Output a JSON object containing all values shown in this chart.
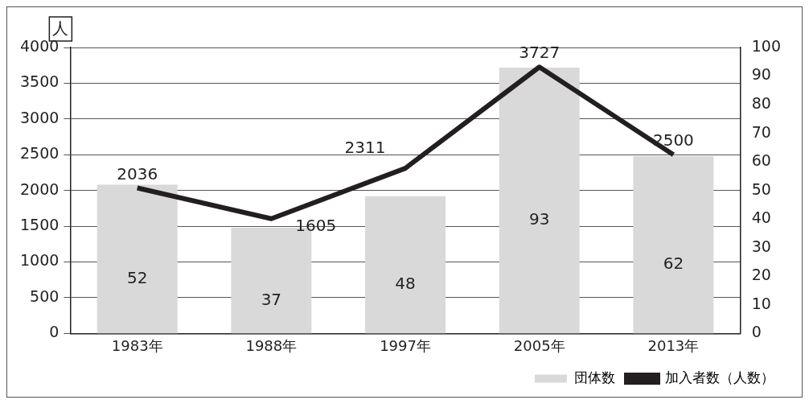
{
  "chart_data": {
    "type": "bar",
    "ylabel": "人",
    "categories": [
      "1983年",
      "1988年",
      "1997年",
      "2005年",
      "2013年"
    ],
    "series": [
      {
        "name": "団体数",
        "axis": "y2",
        "color": "#d9d9d9",
        "values": [
          52,
          37,
          48,
          93,
          62
        ]
      },
      {
        "name": "加入者数（人数）",
        "type": "line",
        "color": "#231f20",
        "values": [
          2036,
          1605,
          2311,
          3727,
          2500
        ]
      }
    ],
    "ylim": [
      0,
      4000
    ],
    "yticks": [
      0,
      500,
      1000,
      1500,
      2000,
      2500,
      3000,
      3500,
      4000
    ],
    "y2lim": [
      0,
      100
    ],
    "y2ticks": [
      0,
      10,
      20,
      30,
      40,
      50,
      60,
      70,
      80,
      90,
      100
    ],
    "grid": "y",
    "legend": "bottom right",
    "data_labels": true,
    "marker": "none"
  }
}
